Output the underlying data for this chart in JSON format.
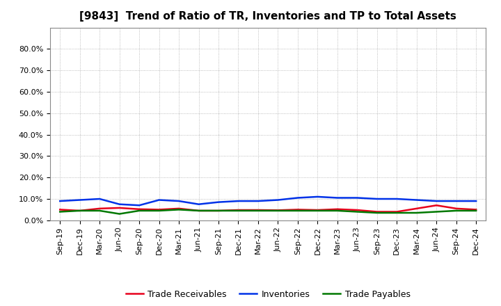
{
  "title": "[9843]  Trend of Ratio of TR, Inventories and TP to Total Assets",
  "x_labels": [
    "Sep-19",
    "Dec-19",
    "Mar-20",
    "Jun-20",
    "Sep-20",
    "Dec-20",
    "Mar-21",
    "Jun-21",
    "Sep-21",
    "Dec-21",
    "Mar-22",
    "Jun-22",
    "Sep-22",
    "Dec-22",
    "Mar-23",
    "Jun-23",
    "Sep-23",
    "Dec-23",
    "Mar-24",
    "Jun-24",
    "Sep-24",
    "Dec-24"
  ],
  "trade_receivables": [
    5.0,
    4.5,
    5.5,
    5.8,
    5.2,
    5.0,
    5.5,
    4.5,
    4.5,
    4.8,
    4.8,
    4.7,
    5.0,
    4.8,
    5.2,
    4.8,
    4.0,
    4.0,
    5.5,
    7.0,
    5.5,
    5.0
  ],
  "inventories": [
    9.0,
    9.5,
    10.0,
    7.5,
    7.0,
    9.5,
    9.0,
    7.5,
    8.5,
    9.0,
    9.0,
    9.5,
    10.5,
    11.0,
    10.5,
    10.5,
    10.0,
    10.0,
    9.5,
    9.0,
    9.0,
    9.0
  ],
  "trade_payables": [
    4.0,
    4.5,
    4.5,
    3.0,
    4.5,
    4.5,
    5.0,
    4.5,
    4.5,
    4.5,
    4.5,
    4.5,
    4.5,
    4.5,
    4.5,
    4.0,
    3.5,
    3.5,
    3.5,
    4.0,
    4.5,
    4.5
  ],
  "color_tr": "#e8001c",
  "color_inv": "#0032e8",
  "color_tp": "#007800",
  "legend_tr": "Trade Receivables",
  "legend_inv": "Inventories",
  "legend_tp": "Trade Payables",
  "background_color": "#ffffff",
  "grid_color": "#aaaaaa",
  "yticks_pct": [
    0.0,
    10.0,
    20.0,
    30.0,
    40.0,
    50.0,
    60.0,
    70.0,
    80.0
  ],
  "ylim_pct": [
    0.0,
    90.0
  ],
  "title_fontsize": 11,
  "tick_fontsize": 8,
  "legend_fontsize": 9,
  "linewidth": 1.8
}
